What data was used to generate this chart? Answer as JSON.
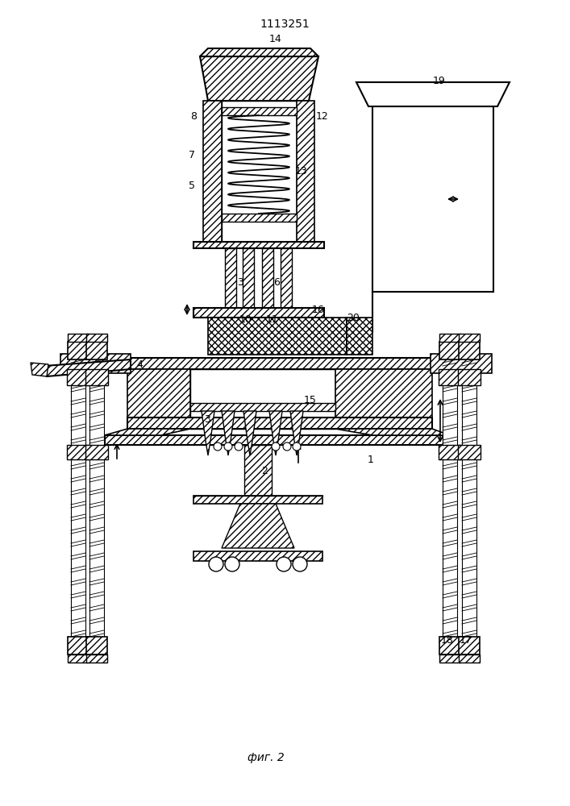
{
  "title": "1113251",
  "fig_label": "фиг. 2",
  "bg_color": "#ffffff"
}
